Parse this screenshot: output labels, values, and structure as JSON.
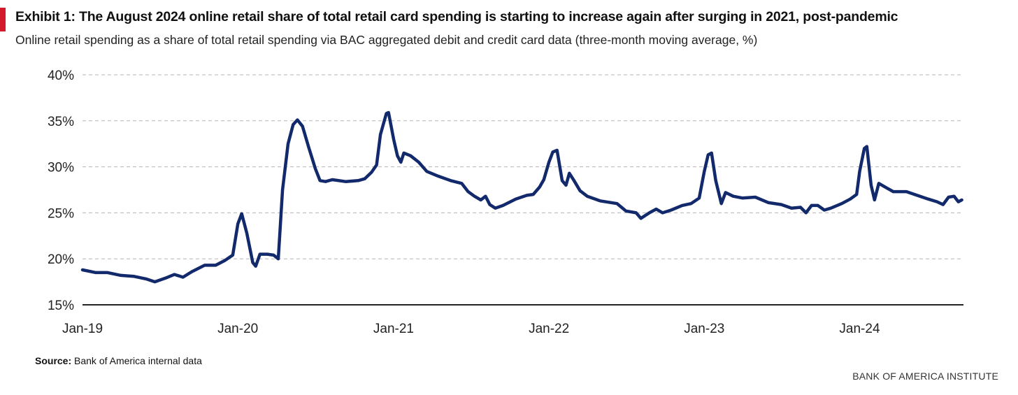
{
  "exhibit": {
    "title": "Exhibit 1: The August 2024 online retail share of total retail card spending is starting to increase again after surging in 2021, post-pandemic",
    "subtitle": "Online retail spending as a share of total retail spending via BAC aggregated debit and credit card data (three-month moving average, %)",
    "source_label": "Source:",
    "source_text": "Bank of America internal data",
    "brand": "BANK OF AMERICA INSTITUTE",
    "accent_color": "#d21a2b"
  },
  "chart_data": {
    "type": "line",
    "title": "Exhibit 1: The August 2024 online retail share of total retail card spending is starting to increase again after surging in 2021, post-pandemic",
    "subtitle": "Online retail spending as a share of total retail spending via BAC aggregated debit and credit card data (three-month moving average, %)",
    "xlabel": "",
    "ylabel": "",
    "ylim": [
      15,
      40
    ],
    "yticks": [
      15,
      20,
      25,
      30,
      35,
      40
    ],
    "ytick_labels": [
      "15%",
      "20%",
      "25%",
      "30%",
      "35%",
      "40%"
    ],
    "xlim": [
      "2019-01-01",
      "2024-09-01"
    ],
    "xticks": [
      "2019-01-01",
      "2020-01-01",
      "2021-01-01",
      "2022-01-01",
      "2023-01-01",
      "2024-01-01"
    ],
    "xtick_labels": [
      "Jan-19",
      "Jan-20",
      "Jan-21",
      "Jan-22",
      "Jan-23",
      "Jan-24"
    ],
    "grid": "horizontal dashed",
    "line_color": "#12296b",
    "series": [
      {
        "points": [
          [
            "2019-01-01",
            18.8
          ],
          [
            "2019-02-01",
            18.5
          ],
          [
            "2019-03-01",
            18.5
          ],
          [
            "2019-04-01",
            18.2
          ],
          [
            "2019-05-01",
            18.1
          ],
          [
            "2019-06-01",
            17.8
          ],
          [
            "2019-06-20",
            17.5
          ],
          [
            "2019-07-15",
            17.9
          ],
          [
            "2019-08-05",
            18.3
          ],
          [
            "2019-08-25",
            18.0
          ],
          [
            "2019-09-15",
            18.6
          ],
          [
            "2019-10-15",
            19.3
          ],
          [
            "2019-11-10",
            19.3
          ],
          [
            "2019-12-01",
            19.8
          ],
          [
            "2019-12-20",
            20.4
          ],
          [
            "2020-01-01",
            23.8
          ],
          [
            "2020-01-10",
            24.9
          ],
          [
            "2020-01-22",
            22.8
          ],
          [
            "2020-02-05",
            19.6
          ],
          [
            "2020-02-12",
            19.2
          ],
          [
            "2020-02-22",
            20.5
          ],
          [
            "2020-03-10",
            20.5
          ],
          [
            "2020-03-25",
            20.4
          ],
          [
            "2020-04-05",
            20.0
          ],
          [
            "2020-04-15",
            27.5
          ],
          [
            "2020-04-28",
            32.5
          ],
          [
            "2020-05-10",
            34.6
          ],
          [
            "2020-05-20",
            35.1
          ],
          [
            "2020-06-01",
            34.4
          ],
          [
            "2020-06-15",
            32.2
          ],
          [
            "2020-07-01",
            29.8
          ],
          [
            "2020-07-12",
            28.5
          ],
          [
            "2020-07-25",
            28.4
          ],
          [
            "2020-08-10",
            28.6
          ],
          [
            "2020-09-10",
            28.4
          ],
          [
            "2020-10-10",
            28.5
          ],
          [
            "2020-10-25",
            28.7
          ],
          [
            "2020-11-10",
            29.4
          ],
          [
            "2020-11-22",
            30.2
          ],
          [
            "2020-12-01",
            33.5
          ],
          [
            "2020-12-15",
            35.8
          ],
          [
            "2020-12-20",
            35.9
          ],
          [
            "2021-01-01",
            33.0
          ],
          [
            "2021-01-10",
            31.2
          ],
          [
            "2021-01-18",
            30.5
          ],
          [
            "2021-01-25",
            31.5
          ],
          [
            "2021-02-10",
            31.2
          ],
          [
            "2021-03-01",
            30.5
          ],
          [
            "2021-03-20",
            29.5
          ],
          [
            "2021-04-15",
            29.0
          ],
          [
            "2021-05-15",
            28.5
          ],
          [
            "2021-06-10",
            28.2
          ],
          [
            "2021-06-25",
            27.3
          ],
          [
            "2021-07-10",
            26.8
          ],
          [
            "2021-07-25",
            26.4
          ],
          [
            "2021-08-05",
            26.8
          ],
          [
            "2021-08-15",
            25.9
          ],
          [
            "2021-08-28",
            25.5
          ],
          [
            "2021-09-15",
            25.8
          ],
          [
            "2021-10-15",
            26.5
          ],
          [
            "2021-11-10",
            26.9
          ],
          [
            "2021-11-25",
            27.0
          ],
          [
            "2021-12-10",
            27.8
          ],
          [
            "2021-12-20",
            28.6
          ],
          [
            "2022-01-01",
            30.5
          ],
          [
            "2022-01-10",
            31.6
          ],
          [
            "2022-01-20",
            31.8
          ],
          [
            "2022-02-01",
            28.5
          ],
          [
            "2022-02-10",
            28.0
          ],
          [
            "2022-02-18",
            29.3
          ],
          [
            "2022-03-01",
            28.5
          ],
          [
            "2022-03-15",
            27.4
          ],
          [
            "2022-04-01",
            26.8
          ],
          [
            "2022-05-01",
            26.3
          ],
          [
            "2022-06-10",
            26.0
          ],
          [
            "2022-07-01",
            25.2
          ],
          [
            "2022-07-25",
            25.0
          ],
          [
            "2022-08-05",
            24.4
          ],
          [
            "2022-08-25",
            25.0
          ],
          [
            "2022-09-10",
            25.4
          ],
          [
            "2022-09-25",
            25.0
          ],
          [
            "2022-10-15",
            25.3
          ],
          [
            "2022-11-10",
            25.8
          ],
          [
            "2022-12-01",
            26.0
          ],
          [
            "2022-12-20",
            26.6
          ],
          [
            "2023-01-01",
            29.5
          ],
          [
            "2023-01-10",
            31.3
          ],
          [
            "2023-01-18",
            31.5
          ],
          [
            "2023-01-28",
            28.5
          ],
          [
            "2023-02-10",
            26.0
          ],
          [
            "2023-02-20",
            27.2
          ],
          [
            "2023-03-10",
            26.8
          ],
          [
            "2023-04-01",
            26.6
          ],
          [
            "2023-05-01",
            26.7
          ],
          [
            "2023-06-01",
            26.1
          ],
          [
            "2023-07-01",
            25.9
          ],
          [
            "2023-07-25",
            25.5
          ],
          [
            "2023-08-15",
            25.6
          ],
          [
            "2023-08-28",
            25.0
          ],
          [
            "2023-09-10",
            25.8
          ],
          [
            "2023-09-25",
            25.8
          ],
          [
            "2023-10-10",
            25.3
          ],
          [
            "2023-10-25",
            25.5
          ],
          [
            "2023-11-20",
            26.0
          ],
          [
            "2023-12-10",
            26.5
          ],
          [
            "2023-12-25",
            27.0
          ],
          [
            "2024-01-01",
            29.5
          ],
          [
            "2024-01-12",
            32.0
          ],
          [
            "2024-01-18",
            32.2
          ],
          [
            "2024-01-28",
            28.0
          ],
          [
            "2024-02-05",
            26.4
          ],
          [
            "2024-02-15",
            28.2
          ],
          [
            "2024-03-01",
            27.8
          ],
          [
            "2024-03-20",
            27.3
          ],
          [
            "2024-04-20",
            27.3
          ],
          [
            "2024-05-15",
            26.9
          ],
          [
            "2024-06-10",
            26.5
          ],
          [
            "2024-07-01",
            26.2
          ],
          [
            "2024-07-15",
            25.9
          ],
          [
            "2024-07-28",
            26.7
          ],
          [
            "2024-08-10",
            26.8
          ],
          [
            "2024-08-20",
            26.2
          ],
          [
            "2024-08-28",
            26.4
          ]
        ]
      }
    ]
  }
}
